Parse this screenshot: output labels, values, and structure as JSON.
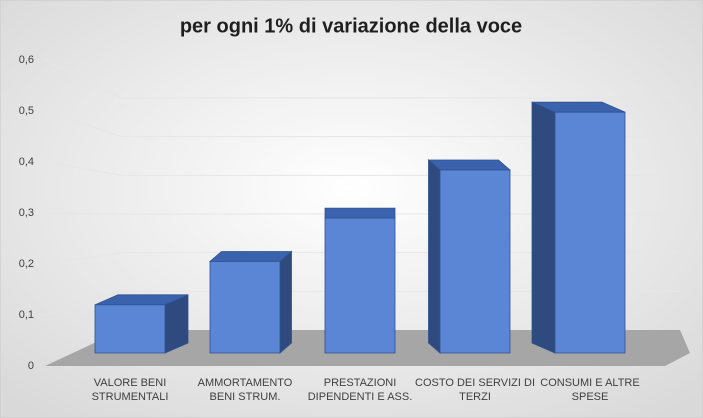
{
  "chart_data": {
    "type": "bar3d",
    "title": "per ogni 1% di variazione della voce",
    "categories": [
      "VALORE BENI STRUMENTALI",
      "AMMORTAMENTO BENI STRUM.",
      "PRESTAZIONI DIPENDENTI E ASS.",
      "COSTO DEI SERVIZI DI TERZI",
      "CONSUMI E ALTRE SPESE"
    ],
    "values": [
      0.1,
      0.19,
      0.28,
      0.38,
      0.5
    ],
    "color": "#5b86d6",
    "ylim": [
      0,
      0.6
    ],
    "yticks": [
      0,
      {
        "value": 0.1,
        "label": "0,1"
      },
      {
        "value": 0.2,
        "label": "0,2"
      },
      {
        "value": 0.3,
        "label": "0,3"
      },
      {
        "value": 0.4,
        "label": "0,4"
      },
      {
        "value": 0.5,
        "label": "0,5"
      },
      {
        "value": 0.6,
        "label": "0,6"
      }
    ],
    "grid": true
  }
}
